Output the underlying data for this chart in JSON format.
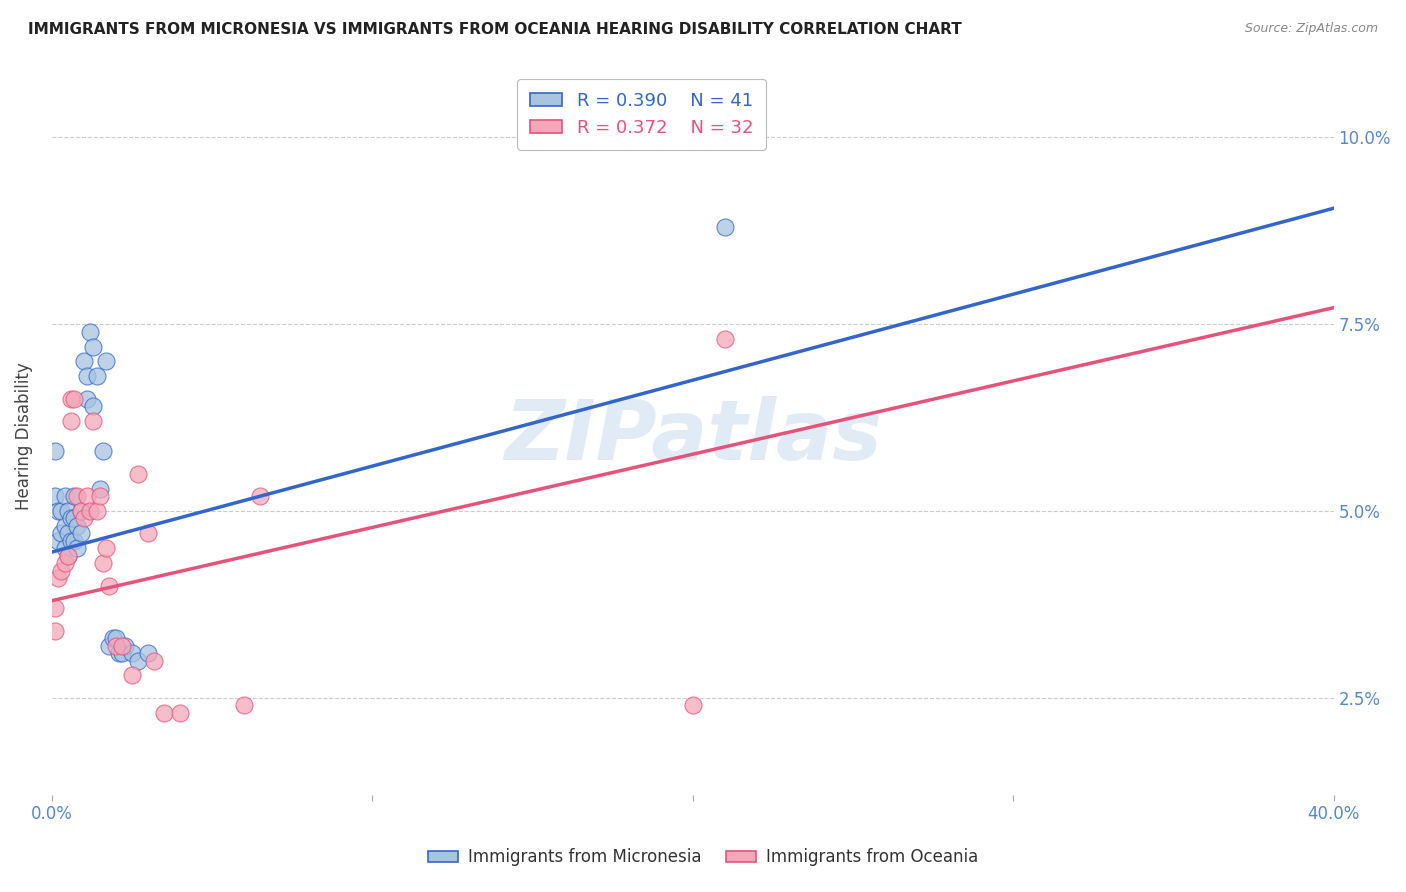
{
  "title": "IMMIGRANTS FROM MICRONESIA VS IMMIGRANTS FROM OCEANIA HEARING DISABILITY CORRELATION CHART",
  "source": "Source: ZipAtlas.com",
  "ylabel": "Hearing Disability",
  "blue_label": "Immigrants from Micronesia",
  "pink_label": "Immigrants from Oceania",
  "blue_R": "0.390",
  "blue_N": "41",
  "pink_R": "0.372",
  "pink_N": "32",
  "blue_color": "#A8C4E0",
  "pink_color": "#F4A7B9",
  "line_blue": "#3366CC",
  "line_pink": "#E8517A",
  "watermark_color": "#C5D8EE",
  "grid_color": "#CCCCCC",
  "xlim": [
    0.0,
    0.4
  ],
  "ylim": [
    0.012,
    0.108
  ],
  "xtick_vals": [
    0.0,
    0.1,
    0.2,
    0.3,
    0.4
  ],
  "ytick_vals": [
    0.025,
    0.05,
    0.075,
    0.1
  ],
  "blue_intercept": 0.0445,
  "blue_slope": 0.115,
  "pink_intercept": 0.038,
  "pink_slope": 0.098,
  "blue_x": [
    0.001,
    0.001,
    0.002,
    0.002,
    0.003,
    0.003,
    0.004,
    0.004,
    0.004,
    0.005,
    0.005,
    0.005,
    0.006,
    0.006,
    0.007,
    0.007,
    0.007,
    0.008,
    0.008,
    0.009,
    0.009,
    0.01,
    0.011,
    0.011,
    0.012,
    0.013,
    0.013,
    0.014,
    0.015,
    0.016,
    0.017,
    0.018,
    0.019,
    0.02,
    0.021,
    0.022,
    0.023,
    0.025,
    0.027,
    0.03,
    0.21
  ],
  "blue_y": [
    0.058,
    0.052,
    0.05,
    0.046,
    0.05,
    0.047,
    0.052,
    0.048,
    0.045,
    0.05,
    0.047,
    0.044,
    0.049,
    0.046,
    0.052,
    0.049,
    0.046,
    0.048,
    0.045,
    0.05,
    0.047,
    0.07,
    0.068,
    0.065,
    0.074,
    0.072,
    0.064,
    0.068,
    0.053,
    0.058,
    0.07,
    0.032,
    0.033,
    0.033,
    0.031,
    0.031,
    0.032,
    0.031,
    0.03,
    0.031,
    0.088
  ],
  "pink_x": [
    0.001,
    0.001,
    0.002,
    0.003,
    0.004,
    0.005,
    0.006,
    0.006,
    0.007,
    0.008,
    0.009,
    0.01,
    0.011,
    0.012,
    0.013,
    0.014,
    0.015,
    0.016,
    0.017,
    0.018,
    0.02,
    0.022,
    0.025,
    0.027,
    0.03,
    0.032,
    0.035,
    0.04,
    0.06,
    0.065,
    0.2,
    0.21
  ],
  "pink_y": [
    0.037,
    0.034,
    0.041,
    0.042,
    0.043,
    0.044,
    0.065,
    0.062,
    0.065,
    0.052,
    0.05,
    0.049,
    0.052,
    0.05,
    0.062,
    0.05,
    0.052,
    0.043,
    0.045,
    0.04,
    0.032,
    0.032,
    0.028,
    0.055,
    0.047,
    0.03,
    0.023,
    0.023,
    0.024,
    0.052,
    0.024,
    0.073
  ]
}
